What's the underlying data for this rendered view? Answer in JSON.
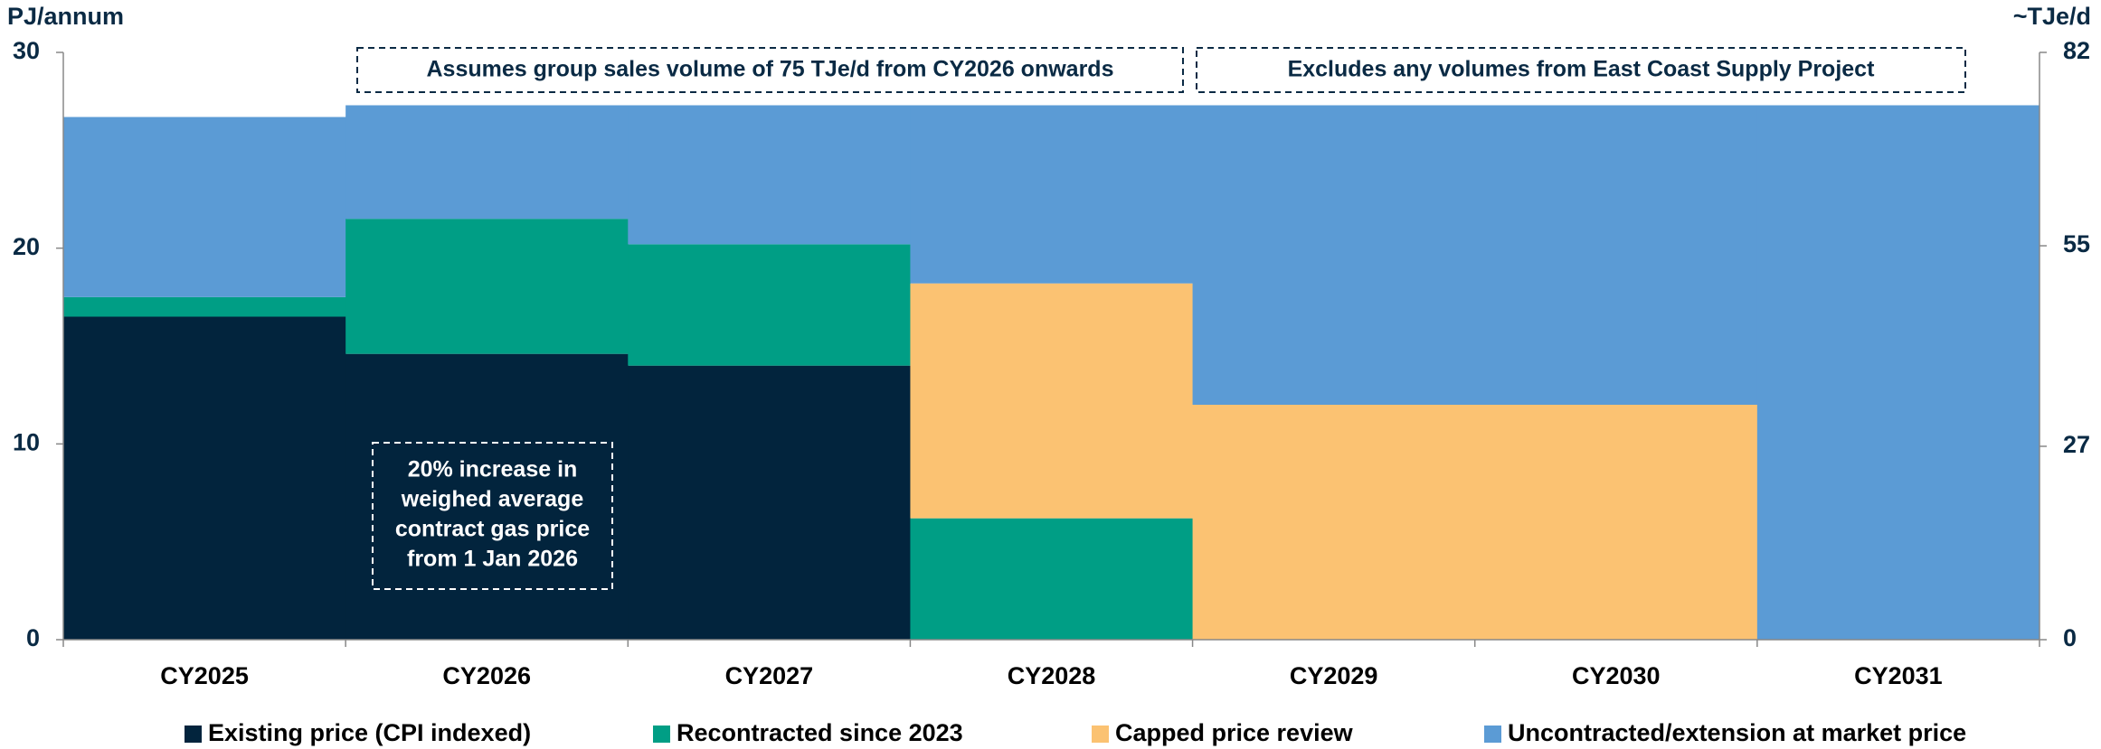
{
  "chart_data": {
    "type": "stacked_bar",
    "y_label": "PJ/annum",
    "y2_label": "~TJe/d",
    "categories": [
      "CY2025",
      "CY2026",
      "CY2027",
      "CY2028",
      "CY2029",
      "CY2030",
      "CY2031"
    ],
    "series": [
      {
        "name": "Existing price (CPI indexed)",
        "color": "#02243d",
        "values": [
          16.5,
          14.6,
          14.0,
          0,
          0,
          0,
          0
        ]
      },
      {
        "name": "Recontracted since 2023",
        "color": "#009e85",
        "values": [
          1.0,
          6.9,
          6.2,
          6.2,
          0,
          0,
          0
        ]
      },
      {
        "name": "Capped price review",
        "color": "#fbc272",
        "values": [
          0,
          0,
          0,
          12.0,
          12.0,
          12.0,
          0
        ]
      },
      {
        "name": "Uncontracted/extension at market price",
        "color": "#5b9bd5",
        "values": [
          9.2,
          5.8,
          7.1,
          9.1,
          15.3,
          15.3,
          27.3
        ]
      }
    ],
    "ylim": [
      0,
      30
    ],
    "yticks": [
      0,
      10,
      20,
      30
    ],
    "y2lim": [
      0,
      82
    ],
    "y2ticks": [
      0,
      27,
      55,
      82
    ],
    "annotations": [
      {
        "text": "Assumes group sales volume of 75 TJe/d from CY2026 onwards"
      },
      {
        "text": "Excludes any volumes from East Coast Supply Project"
      },
      {
        "lines": [
          "20% increase in",
          "weighed average",
          "contract gas price",
          "from 1 Jan 2026"
        ]
      }
    ]
  }
}
